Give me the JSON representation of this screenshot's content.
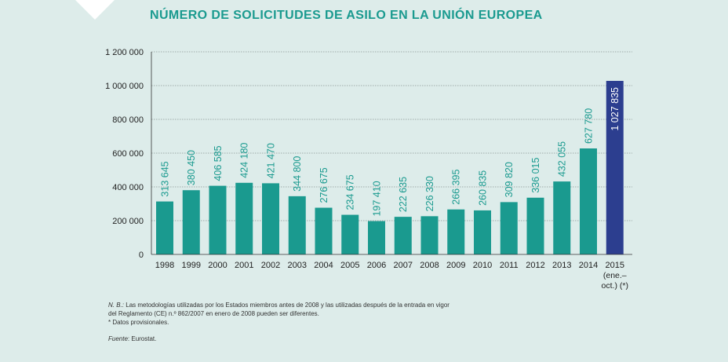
{
  "header": {
    "title": "NÚMERO DE SOLICITUDES DE ASILO EN LA UNIÓN EUROPEA"
  },
  "notes": {
    "nb_label": "N. B.:",
    "nb_line1": " Las metodologías utilizadas por los Estados miembros antes de 2008 y las utilizadas después de la entrada en vigor",
    "nb_line2": "del Reglamento (CE) n.º 862/2007 en enero de 2008 pueden ser diferentes.",
    "provisional": "* Datos provisionales.",
    "source_label": "Fuente",
    "source_text": ": Eurostat."
  },
  "colors": {
    "background": "#ddecea",
    "bar": "#1a9a8f",
    "bar_highlight": "#2c3e8f",
    "title": "#1a9a8f",
    "label": "#1a9a8f",
    "label_highlight": "#ffffff"
  },
  "chart_data": {
    "type": "bar",
    "title": "NÚMERO DE SOLICITUDES DE ASILO EN LA UNIÓN EUROPEA",
    "categories": [
      "1998",
      "1999",
      "2000",
      "2001",
      "2002",
      "2003",
      "2004",
      "2005",
      "2006",
      "2007",
      "2008",
      "2009",
      "2010",
      "2011",
      "2012",
      "2013",
      "2014",
      "2015"
    ],
    "category_extra": {
      "2015": [
        "(ene.–",
        "oct.) (*)"
      ]
    },
    "values": [
      313645,
      380450,
      406585,
      424180,
      421470,
      344800,
      276675,
      234675,
      197410,
      222635,
      226330,
      266395,
      260835,
      309820,
      336015,
      432055,
      627780,
      1027835
    ],
    "value_labels": [
      "313 645",
      "380 450",
      "406 585",
      "424 180",
      "421 470",
      "344 800",
      "276 675",
      "234 675",
      "197 410",
      "222 635",
      "226 330",
      "266 395",
      "260 835",
      "309 820",
      "336 015",
      "432 055",
      "627 780",
      "1 027 835"
    ],
    "highlight_index": 17,
    "ylim": [
      0,
      1200000
    ],
    "yticks": [
      0,
      200000,
      400000,
      600000,
      800000,
      1000000,
      1200000
    ],
    "ytick_labels": [
      "0",
      "200 000",
      "400 000",
      "600 000",
      "800 000",
      "1 000 000",
      "1 200 000"
    ],
    "grid": true,
    "xlabel": "",
    "ylabel": ""
  }
}
